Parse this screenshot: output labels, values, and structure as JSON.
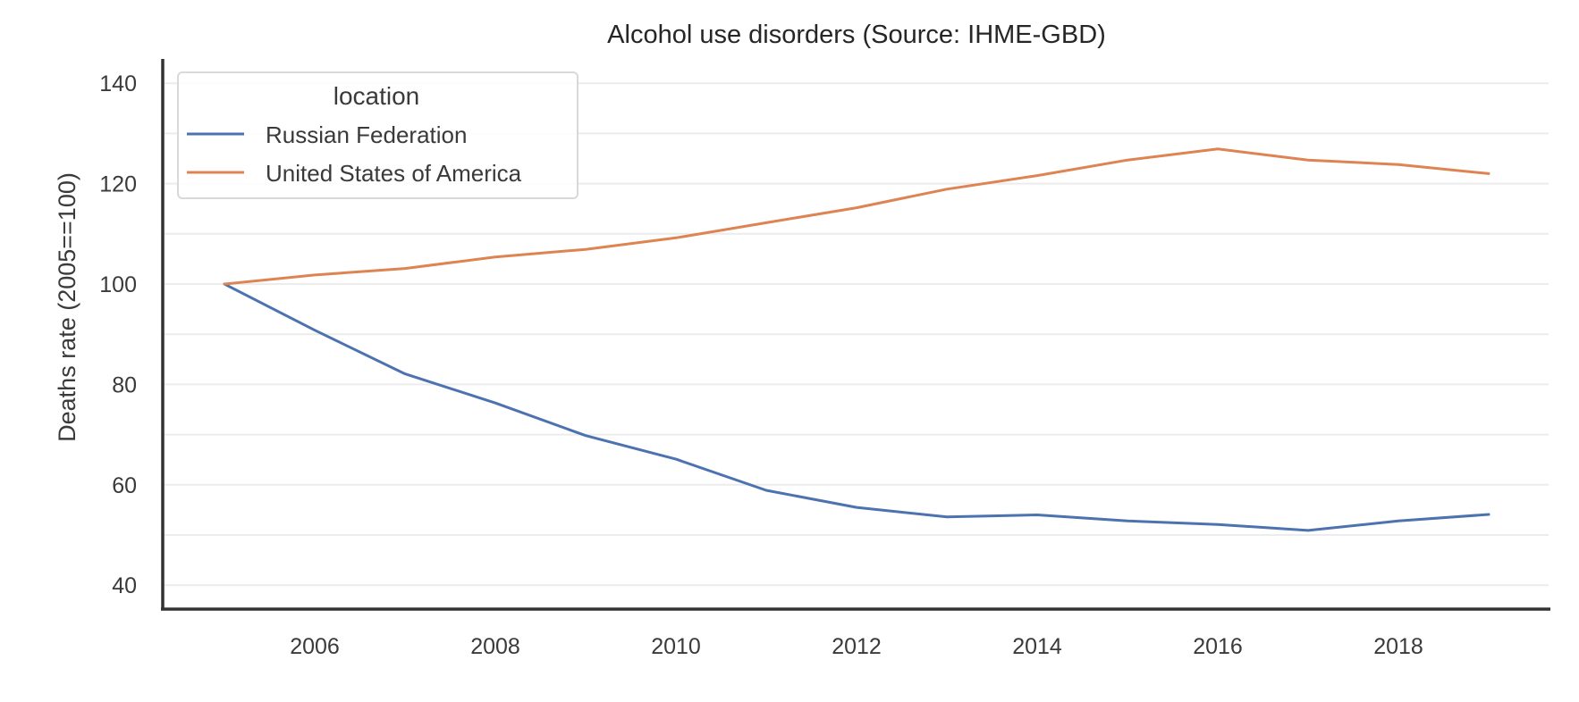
{
  "chart_data": {
    "type": "line",
    "title": "Alcohol use disorders (Source: IHME-GBD)",
    "xlabel": "",
    "ylabel": "Deaths rate (2005==100)",
    "x": [
      2005,
      2006,
      2007,
      2008,
      2009,
      2010,
      2011,
      2012,
      2013,
      2014,
      2015,
      2016,
      2017,
      2018,
      2019
    ],
    "xlim": [
      2004.0,
      2020.7
    ],
    "ylim": [
      35.3,
      144.7
    ],
    "xticks": [
      2006,
      2008,
      2010,
      2012,
      2014,
      2016,
      2018
    ],
    "xtick_labels": [
      "2006",
      "2008",
      "2010",
      "2012",
      "2014",
      "2016",
      "2018"
    ],
    "yticks": [
      40,
      60,
      80,
      100,
      120,
      140
    ],
    "ytick_labels": [
      "40",
      "60",
      "80",
      "100",
      "120",
      "140"
    ],
    "grid": true,
    "grid_minor_y": [
      50,
      70,
      90,
      110,
      130
    ],
    "legend": {
      "title": "location",
      "placement": "top-left"
    },
    "series": [
      {
        "name": "Russian Federation",
        "color": "#4c72b0",
        "values": [
          100.0,
          90.8,
          82.1,
          76.3,
          69.8,
          65.1,
          58.9,
          55.5,
          53.6,
          54.0,
          52.8,
          52.1,
          50.9,
          52.8,
          54.1
        ]
      },
      {
        "name": "United States of America",
        "color": "#dd8452",
        "values": [
          100.0,
          101.8,
          103.1,
          105.4,
          106.9,
          109.2,
          112.2,
          115.2,
          118.9,
          121.6,
          124.7,
          126.9,
          124.7,
          123.8,
          122.0
        ]
      }
    ]
  }
}
